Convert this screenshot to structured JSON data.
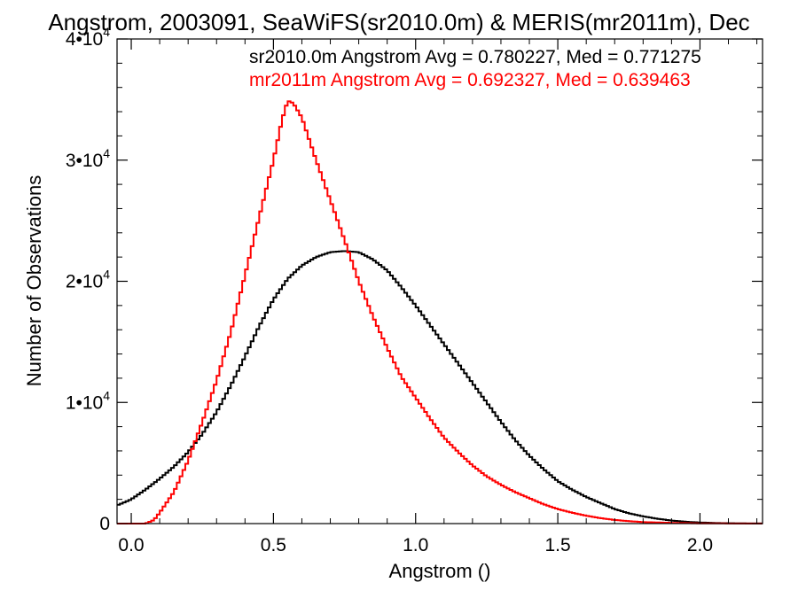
{
  "chart_data": {
    "type": "line",
    "title": "Angstrom, 2003091, SeaWiFS(sr2010.0m) & MERIS(mr2011m), Dec",
    "xlabel": "Angstrom ()",
    "ylabel": "Number of Observations",
    "xlim": [
      -0.05,
      2.22
    ],
    "ylim": [
      0,
      40000
    ],
    "x_ticks": [
      {
        "value": 0.0,
        "label": "0.0"
      },
      {
        "value": 0.5,
        "label": "0.5"
      },
      {
        "value": 1.0,
        "label": "1.0"
      },
      {
        "value": 1.5,
        "label": "1.5"
      },
      {
        "value": 2.0,
        "label": "2.0"
      }
    ],
    "y_ticks": [
      {
        "value": 0,
        "mantissa": "0",
        "exponent": ""
      },
      {
        "value": 10000,
        "mantissa": "1•10",
        "exponent": "4"
      },
      {
        "value": 20000,
        "mantissa": "2•10",
        "exponent": "4"
      },
      {
        "value": 30000,
        "mantissa": "3•10",
        "exponent": "4"
      },
      {
        "value": 40000,
        "mantissa": "4•10",
        "exponent": "4"
      }
    ],
    "grid": false,
    "legend": [
      {
        "text": "sr2010.0m Angstrom Avg = 0.780227, Med = 0.771275",
        "color": "#000000"
      },
      {
        "text": "mr2011m Angstrom Avg = 0.692327, Med = 0.639463",
        "color": "#ff0000"
      }
    ],
    "series": [
      {
        "color": "#000000",
        "points": [
          [
            -0.05,
            1500
          ],
          [
            0.0,
            2000
          ],
          [
            0.05,
            2800
          ],
          [
            0.1,
            3700
          ],
          [
            0.15,
            4700
          ],
          [
            0.2,
            5900
          ],
          [
            0.25,
            7400
          ],
          [
            0.3,
            9200
          ],
          [
            0.35,
            11400
          ],
          [
            0.4,
            13800
          ],
          [
            0.45,
            16300
          ],
          [
            0.5,
            18500
          ],
          [
            0.55,
            20200
          ],
          [
            0.6,
            21300
          ],
          [
            0.65,
            22000
          ],
          [
            0.7,
            22400
          ],
          [
            0.75,
            22500
          ],
          [
            0.8,
            22400
          ],
          [
            0.85,
            21800
          ],
          [
            0.9,
            20900
          ],
          [
            0.95,
            19500
          ],
          [
            1.0,
            18000
          ],
          [
            1.05,
            16400
          ],
          [
            1.1,
            14800
          ],
          [
            1.15,
            13200
          ],
          [
            1.2,
            11600
          ],
          [
            1.25,
            10000
          ],
          [
            1.3,
            8400
          ],
          [
            1.35,
            6900
          ],
          [
            1.4,
            5600
          ],
          [
            1.45,
            4500
          ],
          [
            1.5,
            3500
          ],
          [
            1.55,
            2800
          ],
          [
            1.6,
            2200
          ],
          [
            1.65,
            1700
          ],
          [
            1.7,
            1200
          ],
          [
            1.75,
            850
          ],
          [
            1.8,
            600
          ],
          [
            1.85,
            400
          ],
          [
            1.9,
            250
          ],
          [
            1.95,
            150
          ],
          [
            2.0,
            90
          ],
          [
            2.05,
            50
          ],
          [
            2.1,
            30
          ],
          [
            2.15,
            15
          ],
          [
            2.22,
            5
          ]
        ]
      },
      {
        "color": "#ff0000",
        "points": [
          [
            -0.05,
            0
          ],
          [
            0.05,
            0
          ],
          [
            0.08,
            300
          ],
          [
            0.1,
            900
          ],
          [
            0.15,
            2600
          ],
          [
            0.2,
            5200
          ],
          [
            0.25,
            8400
          ],
          [
            0.3,
            11800
          ],
          [
            0.35,
            15800
          ],
          [
            0.4,
            20500
          ],
          [
            0.45,
            25300
          ],
          [
            0.5,
            30000
          ],
          [
            0.53,
            33300
          ],
          [
            0.55,
            34900
          ],
          [
            0.57,
            34700
          ],
          [
            0.6,
            33500
          ],
          [
            0.65,
            30000
          ],
          [
            0.7,
            26700
          ],
          [
            0.75,
            23400
          ],
          [
            0.8,
            20000
          ],
          [
            0.85,
            17100
          ],
          [
            0.9,
            14500
          ],
          [
            0.95,
            12100
          ],
          [
            1.0,
            10400
          ],
          [
            1.05,
            8700
          ],
          [
            1.1,
            7100
          ],
          [
            1.15,
            5900
          ],
          [
            1.2,
            4800
          ],
          [
            1.25,
            3900
          ],
          [
            1.3,
            3200
          ],
          [
            1.35,
            2600
          ],
          [
            1.4,
            2100
          ],
          [
            1.45,
            1600
          ],
          [
            1.5,
            1200
          ],
          [
            1.55,
            900
          ],
          [
            1.6,
            650
          ],
          [
            1.65,
            450
          ],
          [
            1.7,
            300
          ],
          [
            1.75,
            200
          ],
          [
            1.8,
            120
          ],
          [
            1.9,
            60
          ],
          [
            2.0,
            20
          ],
          [
            2.22,
            5
          ]
        ]
      }
    ]
  }
}
